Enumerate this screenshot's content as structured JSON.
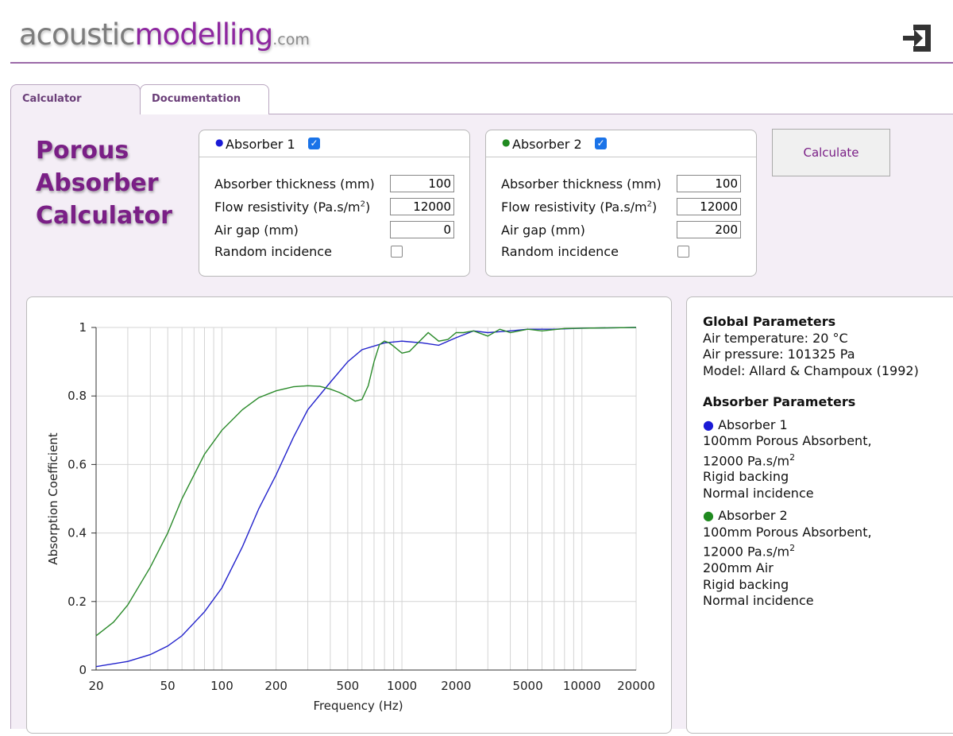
{
  "header": {
    "logo_part1": "acoustic",
    "logo_part2": "modelling",
    "logo_suffix": ".com",
    "logout_icon": "logout-icon"
  },
  "tabs": [
    {
      "label": "Calculator"
    },
    {
      "label": "Documentation"
    }
  ],
  "title_lines": [
    "Porous",
    "Absorber",
    "Calculator"
  ],
  "absorbers": [
    {
      "name": "Absorber 1",
      "color": "#1a1ad6",
      "enabled": true,
      "thickness_label": "Absorber thickness (mm)",
      "thickness": "100",
      "flow_label": "Flow resistivity (Pa.s/m",
      "flow_unit_sup": "2",
      "flow_label_end": ")",
      "flow": "12000",
      "airgap_label": "Air gap (mm)",
      "airgap": "0",
      "random_label": "Random incidence",
      "random": false
    },
    {
      "name": "Absorber 2",
      "color": "#1f8a1f",
      "enabled": true,
      "thickness_label": "Absorber thickness (mm)",
      "thickness": "100",
      "flow_label": "Flow resistivity (Pa.s/m",
      "flow_unit_sup": "2",
      "flow_label_end": ")",
      "flow": "12000",
      "airgap_label": "Air gap (mm)",
      "airgap": "200",
      "random_label": "Random incidence",
      "random": false
    }
  ],
  "calculate_label": "Calculate",
  "info": {
    "global_title": "Global Parameters",
    "global_lines": [
      "Air temperature: 20 °C",
      "Air pressure: 101325 Pa",
      "Model: Allard & Champoux (1992)"
    ],
    "absorber_title": "Absorber Parameters",
    "absorber1": {
      "name": "Absorber 1",
      "lines": [
        "100mm Porous Absorbent,",
        "12000 Pa.s/m",
        "Rigid backing",
        "Normal incidence"
      ],
      "sup": "2"
    },
    "absorber2": {
      "name": "Absorber 2",
      "lines": [
        "100mm Porous Absorbent,",
        "12000 Pa.s/m",
        "200mm Air",
        "Rigid backing",
        "Normal incidence"
      ],
      "sup": "2"
    }
  },
  "chart_data": {
    "type": "line",
    "xscale": "log",
    "xlabel": "Frequency (Hz)",
    "ylabel": "Absorption Coefficient",
    "xlim": [
      20,
      20000
    ],
    "ylim": [
      0,
      1
    ],
    "xticks": [
      20,
      50,
      100,
      200,
      500,
      1000,
      2000,
      5000,
      10000,
      20000
    ],
    "xtick_labels": [
      "20",
      "50",
      "100",
      "200",
      "500",
      "1000",
      "2000",
      "5000",
      "10000",
      "20000"
    ],
    "yticks": [
      0,
      0.2,
      0.4,
      0.6,
      0.8,
      1
    ],
    "ytick_labels": [
      "0",
      "0.2",
      "0.4",
      "0.6",
      "0.8",
      "1"
    ],
    "series": [
      {
        "name": "Absorber 1",
        "color": "#2222cc",
        "x": [
          20,
          30,
          40,
          50,
          60,
          80,
          100,
          130,
          160,
          200,
          250,
          300,
          400,
          500,
          600,
          800,
          1000,
          1300,
          1600,
          2000,
          2500,
          3000,
          4000,
          5000,
          7000,
          10000,
          20000
        ],
        "y": [
          0.01,
          0.025,
          0.045,
          0.07,
          0.1,
          0.17,
          0.24,
          0.36,
          0.47,
          0.57,
          0.68,
          0.76,
          0.84,
          0.9,
          0.935,
          0.955,
          0.96,
          0.955,
          0.948,
          0.97,
          0.99,
          0.985,
          0.99,
          0.995,
          0.995,
          0.998,
          1.0
        ]
      },
      {
        "name": "Absorber 2",
        "color": "#2a8a2a",
        "x": [
          20,
          25,
          30,
          40,
          50,
          60,
          80,
          100,
          130,
          160,
          200,
          250,
          300,
          350,
          400,
          450,
          500,
          550,
          600,
          650,
          700,
          750,
          800,
          850,
          900,
          1000,
          1100,
          1200,
          1400,
          1600,
          1800,
          2000,
          2200,
          2500,
          3000,
          3500,
          4000,
          5000,
          6000,
          8000,
          10000,
          20000
        ],
        "y": [
          0.1,
          0.14,
          0.19,
          0.3,
          0.4,
          0.5,
          0.63,
          0.7,
          0.76,
          0.795,
          0.815,
          0.827,
          0.83,
          0.828,
          0.82,
          0.81,
          0.798,
          0.785,
          0.79,
          0.83,
          0.9,
          0.95,
          0.96,
          0.955,
          0.945,
          0.925,
          0.93,
          0.95,
          0.985,
          0.96,
          0.965,
          0.985,
          0.985,
          0.99,
          0.975,
          0.995,
          0.985,
          0.995,
          0.99,
          0.997,
          0.998,
          1.0
        ]
      }
    ]
  }
}
